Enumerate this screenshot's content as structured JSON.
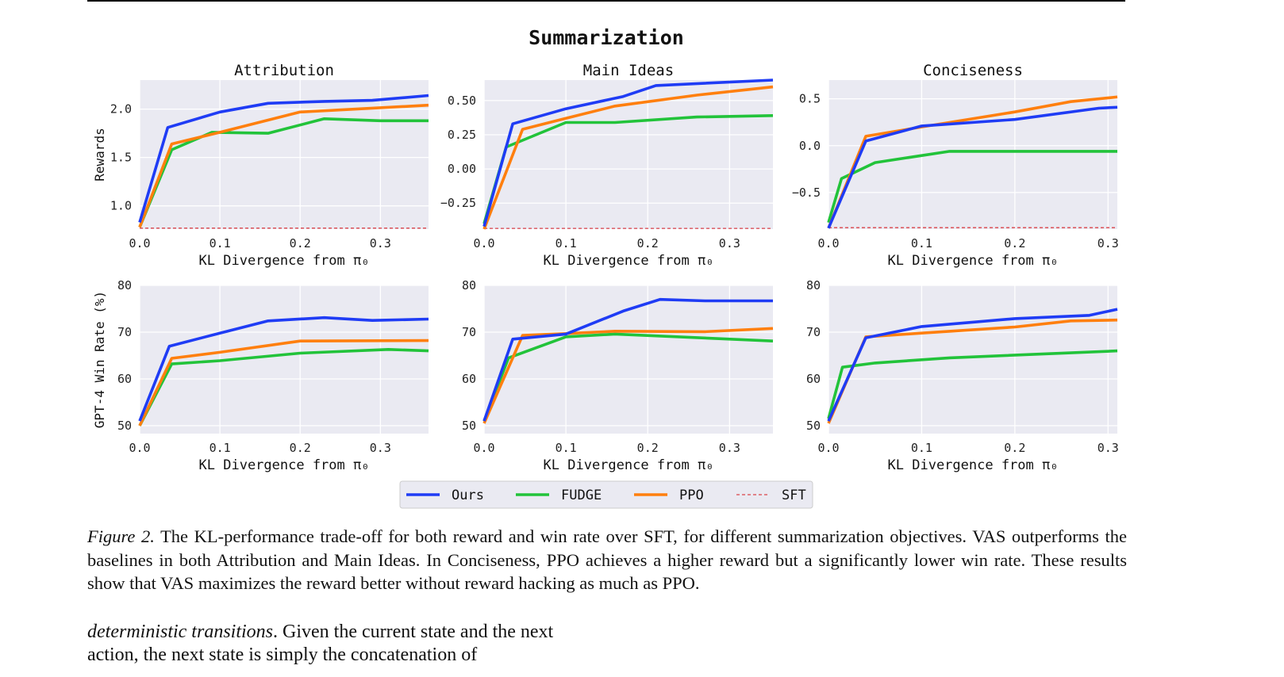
{
  "figure": {
    "suptitle": "Summarization",
    "legend": [
      {
        "name": "Ours",
        "color": "#1f3cf5",
        "style": "solid"
      },
      {
        "name": "FUDGE",
        "color": "#22c33a",
        "style": "solid"
      },
      {
        "name": "PPO",
        "color": "#ff7f0e",
        "style": "solid"
      },
      {
        "name": "SFT",
        "color": "#d9434a",
        "style": "dashed"
      }
    ]
  },
  "chart_data": [
    {
      "type": "line",
      "title": "Attribution",
      "xlabel": "KL Divergence from π₀",
      "ylabel": "Rewards",
      "xlim": [
        0,
        0.36
      ],
      "ylim": [
        0.76,
        2.3
      ],
      "xticks": [
        "0.0",
        "0.1",
        "0.2",
        "0.3"
      ],
      "yticks": [
        "1.0",
        "1.5",
        "2.0"
      ],
      "ytickvals": [
        1.0,
        1.5,
        2.0
      ],
      "grid": true,
      "series": [
        {
          "name": "Ours",
          "x": [
            0,
            0.035,
            0.1,
            0.16,
            0.23,
            0.29,
            0.36
          ],
          "y": [
            0.83,
            1.81,
            1.97,
            2.06,
            2.08,
            2.09,
            2.14
          ]
        },
        {
          "name": "FUDGE",
          "x": [
            0,
            0.04,
            0.09,
            0.16,
            0.23,
            0.3,
            0.36
          ],
          "y": [
            0.78,
            1.58,
            1.76,
            1.75,
            1.9,
            1.88,
            1.88
          ]
        },
        {
          "name": "PPO",
          "x": [
            0,
            0.04,
            0.1,
            0.2,
            0.36
          ],
          "y": [
            0.78,
            1.64,
            1.76,
            1.97,
            2.04
          ]
        },
        {
          "name": "SFT",
          "x": [
            0,
            0.36
          ],
          "y": [
            0.77,
            0.77
          ]
        }
      ]
    },
    {
      "type": "line",
      "title": "Main Ideas",
      "xlabel": "KL Divergence from π₀",
      "ylabel": "",
      "xlim": [
        0,
        0.353
      ],
      "ylim": [
        -0.44,
        0.65
      ],
      "xticks": [
        "0.0",
        "0.1",
        "0.2",
        "0.3"
      ],
      "yticks": [
        "−0.25",
        "0.00",
        "0.25",
        "0.50"
      ],
      "ytickvals": [
        -0.25,
        0,
        0.25,
        0.5
      ],
      "grid": true,
      "series": [
        {
          "name": "Ours",
          "x": [
            0,
            0.035,
            0.1,
            0.17,
            0.21,
            0.353
          ],
          "y": [
            -0.42,
            0.33,
            0.44,
            0.53,
            0.61,
            0.65
          ]
        },
        {
          "name": "FUDGE",
          "x": [
            0,
            0.027,
            0.1,
            0.16,
            0.26,
            0.353
          ],
          "y": [
            -0.4,
            0.16,
            0.34,
            0.34,
            0.38,
            0.39
          ]
        },
        {
          "name": "PPO",
          "x": [
            0,
            0.047,
            0.1,
            0.16,
            0.26,
            0.353
          ],
          "y": [
            -0.44,
            0.29,
            0.37,
            0.46,
            0.54,
            0.6
          ]
        },
        {
          "name": "SFT",
          "x": [
            0,
            0.353
          ],
          "y": [
            -0.435,
            -0.435
          ]
        }
      ]
    },
    {
      "type": "line",
      "title": "Conciseness",
      "xlabel": "KL Divergence from π₀",
      "ylabel": "",
      "xlim": [
        0,
        0.31
      ],
      "ylim": [
        -0.89,
        0.7
      ],
      "xticks": [
        "0.0",
        "0.1",
        "0.2",
        "0.3"
      ],
      "yticks": [
        "−0.5",
        "0.0",
        "0.5"
      ],
      "ytickvals": [
        -0.5,
        0,
        0.5
      ],
      "grid": true,
      "series": [
        {
          "name": "Ours",
          "x": [
            0,
            0.04,
            0.1,
            0.2,
            0.29,
            0.31
          ],
          "y": [
            -0.88,
            0.05,
            0.21,
            0.28,
            0.4,
            0.41
          ]
        },
        {
          "name": "FUDGE",
          "x": [
            0,
            0.014,
            0.05,
            0.13,
            0.31
          ],
          "y": [
            -0.82,
            -0.35,
            -0.18,
            -0.06,
            -0.06
          ]
        },
        {
          "name": "PPO",
          "x": [
            0,
            0.04,
            0.1,
            0.2,
            0.26,
            0.31
          ],
          "y": [
            -0.88,
            0.1,
            0.2,
            0.36,
            0.47,
            0.52
          ]
        },
        {
          "name": "SFT",
          "x": [
            0,
            0.31
          ],
          "y": [
            -0.875,
            -0.875
          ]
        }
      ]
    },
    {
      "type": "line",
      "title": "",
      "xlabel": "KL Divergence from π₀",
      "ylabel": "GPT-4 Win Rate (%)",
      "xlim": [
        0,
        0.36
      ],
      "ylim": [
        48.3,
        80
      ],
      "xticks": [
        "0.0",
        "0.1",
        "0.2",
        "0.3"
      ],
      "yticks": [
        "50",
        "60",
        "70",
        "80"
      ],
      "ytickvals": [
        50,
        60,
        70,
        80
      ],
      "grid": true,
      "series": [
        {
          "name": "Ours",
          "x": [
            0,
            0.037,
            0.1,
            0.16,
            0.23,
            0.29,
            0.36
          ],
          "y": [
            51,
            67,
            69.8,
            72.4,
            73.1,
            72.5,
            72.8
          ]
        },
        {
          "name": "FUDGE",
          "x": [
            0,
            0.04,
            0.1,
            0.2,
            0.31,
            0.36
          ],
          "y": [
            50,
            63.2,
            63.9,
            65.5,
            66.3,
            66
          ]
        },
        {
          "name": "PPO",
          "x": [
            0,
            0.04,
            0.1,
            0.2,
            0.36
          ],
          "y": [
            50,
            64.4,
            65.7,
            68.1,
            68.2
          ]
        }
      ]
    },
    {
      "type": "line",
      "title": "",
      "xlabel": "KL Divergence from π₀",
      "ylabel": "",
      "xlim": [
        0,
        0.353
      ],
      "ylim": [
        48.3,
        80
      ],
      "xticks": [
        "0.0",
        "0.1",
        "0.2",
        "0.3"
      ],
      "yticks": [
        "50",
        "60",
        "70",
        "80"
      ],
      "ytickvals": [
        50,
        60,
        70,
        80
      ],
      "grid": true,
      "series": [
        {
          "name": "Ours",
          "x": [
            0,
            0.035,
            0.1,
            0.17,
            0.215,
            0.27,
            0.353
          ],
          "y": [
            51,
            68.5,
            69.6,
            74.5,
            77,
            76.7,
            76.7
          ]
        },
        {
          "name": "FUDGE",
          "x": [
            0,
            0.03,
            0.1,
            0.16,
            0.353
          ],
          "y": [
            51,
            64.5,
            69,
            69.6,
            68.1
          ]
        },
        {
          "name": "PPO",
          "x": [
            0,
            0.047,
            0.1,
            0.16,
            0.27,
            0.353
          ],
          "y": [
            50.5,
            69.3,
            69.7,
            70.2,
            70.1,
            70.8
          ]
        }
      ]
    },
    {
      "type": "line",
      "title": "",
      "xlabel": "KL Divergence from π₀",
      "ylabel": "",
      "xlim": [
        0,
        0.31
      ],
      "ylim": [
        48.3,
        80
      ],
      "xticks": [
        "0.0",
        "0.1",
        "0.2",
        "0.3"
      ],
      "yticks": [
        "50",
        "60",
        "70",
        "80"
      ],
      "ytickvals": [
        50,
        60,
        70,
        80
      ],
      "grid": true,
      "series": [
        {
          "name": "Ours",
          "x": [
            0,
            0.04,
            0.1,
            0.2,
            0.28,
            0.31
          ],
          "y": [
            51,
            68.8,
            71.2,
            72.9,
            73.6,
            74.9
          ]
        },
        {
          "name": "FUDGE",
          "x": [
            0,
            0.015,
            0.05,
            0.13,
            0.31
          ],
          "y": [
            51.5,
            62.5,
            63.4,
            64.5,
            66
          ]
        },
        {
          "name": "PPO",
          "x": [
            0,
            0.04,
            0.1,
            0.2,
            0.26,
            0.31
          ],
          "y": [
            50.5,
            69,
            69.8,
            71.1,
            72.4,
            72.6
          ]
        }
      ]
    }
  ],
  "caption": {
    "label": "Figure 2.",
    "text": " The KL-performance trade-off for both reward and win rate over SFT, for different summarization objectives. VAS outperforms the baselines in both Attribution and Main Ideas. In Conciseness, PPO achieves a higher reward but a significantly lower win rate. These results show that VAS maximizes the reward better without reward hacking as much as PPO."
  },
  "body": {
    "italic": "deterministic transitions",
    "text": ".  Given the current state and the next action, the next state is simply the concatenation of"
  }
}
